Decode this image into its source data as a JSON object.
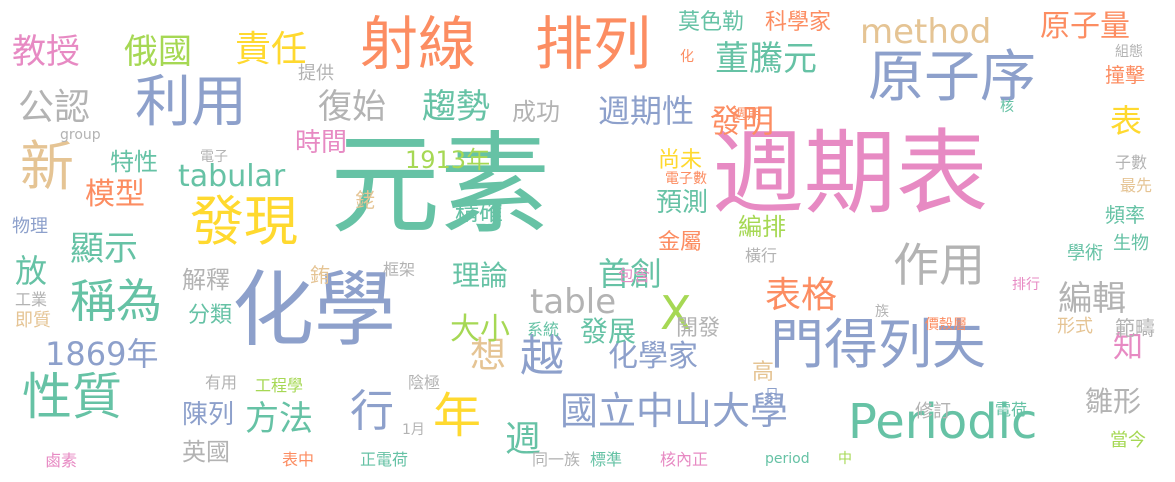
{
  "palette": {
    "green": "#66c2a5",
    "orange": "#fc8d62",
    "blue": "#8da0cb",
    "pink": "#e78ac3",
    "lime": "#a6d854",
    "yellow": "#ffd92f",
    "tan": "#e5c494",
    "gray": "#b3b3b3"
  },
  "words": [
    "元素",
    "週期表",
    "化學",
    "射線",
    "排列",
    "原子序",
    "利用",
    "門得列夫",
    "發現",
    "Periodic",
    "性質",
    "稱為",
    "新",
    "作用",
    "國立中山大學",
    "表格",
    "年",
    "越",
    "method",
    "董騰元",
    "X",
    "table",
    "tabular",
    "教授",
    "俄國",
    "責任",
    "原子量",
    "公認",
    "復始",
    "趨勢",
    "發明",
    "週期性",
    "表",
    "1869年",
    "顯示",
    "理論",
    "首創",
    "化學家",
    "編輯",
    "方法",
    "週",
    "想",
    "行",
    "陳列",
    "雛形",
    "知",
    "模型",
    "大小",
    "發展",
    "時間",
    "放",
    "特性",
    "1913年",
    "精確",
    "成功",
    "預測",
    "解釋",
    "英國",
    "分類",
    "開發",
    "高",
    "科學家",
    "莫色勒",
    "撞擊",
    "銠",
    "銪",
    "框架",
    "排行",
    "學術",
    "頻率",
    "生物",
    "子數",
    "最先",
    "提供",
    "group",
    "電子",
    "物理",
    "工業",
    "即質",
    "有用",
    "工程學",
    "陰極",
    "系統",
    "包含",
    "橫行",
    "編排",
    "金屬",
    "尚未",
    "化",
    "核",
    "週期",
    "組態",
    "價殼層",
    "範疇",
    "形式",
    "族",
    "修訂",
    "電荷",
    "當今",
    "鹵素",
    "表中",
    "正電荷",
    "1月",
    "同一族",
    "標準",
    "核內正",
    "period",
    "日",
    "中",
    "電子數"
  ]
}
